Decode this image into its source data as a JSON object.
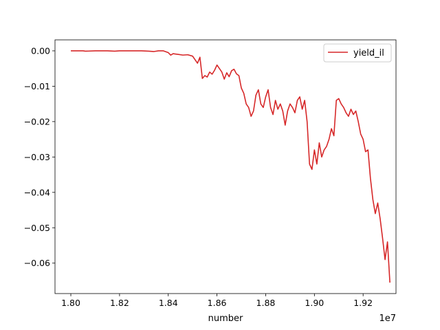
{
  "chart_data": {
    "type": "line",
    "title": "",
    "xlabel": "number",
    "ylabel": "",
    "x_offset_label": "1e7",
    "xlim": [
      1.7935,
      1.9335
    ],
    "ylim": [
      -0.0686,
      0.0031
    ],
    "x_ticks": [
      1.8,
      1.82,
      1.84,
      1.86,
      1.88,
      1.9,
      1.92
    ],
    "x_tick_labels": [
      "1.80",
      "1.82",
      "1.84",
      "1.86",
      "1.88",
      "1.90",
      "1.92"
    ],
    "y_ticks": [
      0.0,
      -0.01,
      -0.02,
      -0.03,
      -0.04,
      -0.05,
      -0.06
    ],
    "y_tick_labels": [
      "0.00",
      "−0.01",
      "−0.02",
      "−0.03",
      "−0.04",
      "−0.05",
      "−0.06"
    ],
    "grid": false,
    "legend_position": "top-right",
    "series": [
      {
        "name": "yield_il",
        "color": "#d62728",
        "x": [
          1.8,
          1.803,
          1.805,
          1.806,
          1.81,
          1.812,
          1.815,
          1.818,
          1.82,
          1.823,
          1.826,
          1.829,
          1.832,
          1.834,
          1.836,
          1.838,
          1.84,
          1.841,
          1.842,
          1.844,
          1.846,
          1.848,
          1.85,
          1.851,
          1.852,
          1.853,
          1.854,
          1.855,
          1.856,
          1.857,
          1.858,
          1.859,
          1.86,
          1.861,
          1.862,
          1.863,
          1.864,
          1.865,
          1.866,
          1.867,
          1.868,
          1.869,
          1.87,
          1.871,
          1.872,
          1.873,
          1.874,
          1.875,
          1.876,
          1.877,
          1.878,
          1.879,
          1.88,
          1.881,
          1.882,
          1.883,
          1.884,
          1.885,
          1.886,
          1.887,
          1.888,
          1.889,
          1.89,
          1.891,
          1.892,
          1.893,
          1.894,
          1.895,
          1.896,
          1.897,
          1.898,
          1.899,
          1.9,
          1.901,
          1.902,
          1.903,
          1.904,
          1.905,
          1.906,
          1.907,
          1.908,
          1.909,
          1.91,
          1.911,
          1.912,
          1.913,
          1.914,
          1.915,
          1.916,
          1.917,
          1.918,
          1.919,
          1.92,
          1.921,
          1.922,
          1.923,
          1.924,
          1.925,
          1.926,
          1.927,
          1.928,
          1.929,
          1.93,
          1.931
        ],
        "y": [
          0.0,
          0.0,
          0.0,
          -0.0001,
          0.0,
          0.0,
          0.0,
          -0.0001,
          0.0,
          0.0,
          0.0,
          0.0,
          -0.0001,
          -0.0002,
          0.0,
          0.0,
          -0.0005,
          -0.0012,
          -0.0008,
          -0.001,
          -0.0012,
          -0.0011,
          -0.0015,
          -0.0025,
          -0.0035,
          -0.0018,
          -0.0078,
          -0.007,
          -0.0074,
          -0.006,
          -0.0066,
          -0.0055,
          -0.004,
          -0.005,
          -0.006,
          -0.008,
          -0.0062,
          -0.0073,
          -0.0056,
          -0.0052,
          -0.0065,
          -0.007,
          -0.0105,
          -0.012,
          -0.015,
          -0.016,
          -0.0185,
          -0.017,
          -0.0125,
          -0.011,
          -0.015,
          -0.016,
          -0.013,
          -0.011,
          -0.016,
          -0.018,
          -0.014,
          -0.0165,
          -0.015,
          -0.017,
          -0.021,
          -0.017,
          -0.015,
          -0.016,
          -0.0175,
          -0.014,
          -0.013,
          -0.0165,
          -0.014,
          -0.02,
          -0.032,
          -0.0335,
          -0.028,
          -0.032,
          -0.026,
          -0.03,
          -0.028,
          -0.027,
          -0.025,
          -0.022,
          -0.024,
          -0.014,
          -0.0135,
          -0.015,
          -0.016,
          -0.0175,
          -0.0185,
          -0.0165,
          -0.018,
          -0.017,
          -0.02,
          -0.0235,
          -0.025,
          -0.0285,
          -0.028,
          -0.036,
          -0.042,
          -0.046,
          -0.043,
          -0.0475,
          -0.053,
          -0.059,
          -0.054,
          -0.0655
        ]
      }
    ]
  }
}
